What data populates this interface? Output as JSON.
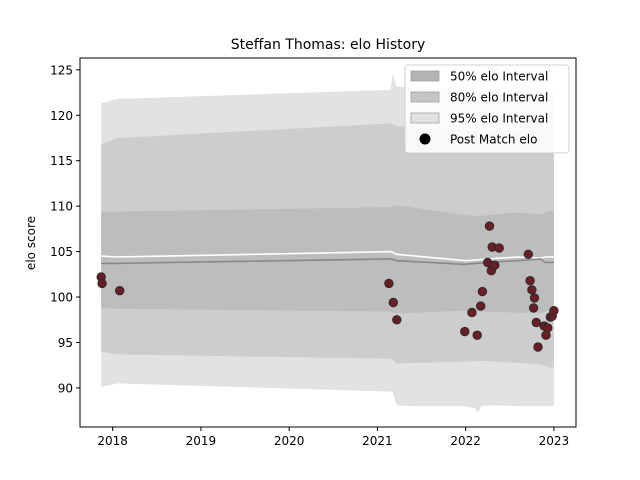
{
  "chart_data": {
    "type": "line",
    "title": "Steffan Thomas: elo History",
    "xlabel": "",
    "ylabel": "elo score",
    "xlim": [
      2017.63,
      2023.25
    ],
    "ylim": [
      85.7,
      126.3
    ],
    "xticks": [
      2018,
      2019,
      2020,
      2021,
      2022,
      2023
    ],
    "yticks": [
      90,
      95,
      100,
      105,
      110,
      115,
      120,
      125
    ],
    "grid": false,
    "legend_position": "top-right",
    "legend": [
      {
        "label": "50% elo Interval",
        "color": "#b3b3b3",
        "kind": "patch"
      },
      {
        "label": "80% elo Interval",
        "color": "#c6c6c6",
        "kind": "patch"
      },
      {
        "label": "95% elo Interval",
        "color": "#e2e2e2",
        "kind": "patch"
      },
      {
        "label": "Post Match elo",
        "color": "#000000",
        "kind": "marker"
      }
    ],
    "colors": {
      "band_95": "#e2e2e2",
      "band_80": "#cdcdcd",
      "band_50": "#bdbdbd",
      "mean_line": "#ffffff",
      "median_line": "#888888",
      "marker_fill": "#6b1f24",
      "marker_edge": "#2a2a2a"
    },
    "band_95": {
      "x": [
        2017.87,
        2018.05,
        2021.15,
        2021.17,
        2021.22,
        2021.4,
        2021.98,
        2022.1,
        2022.14,
        2022.18,
        2022.25,
        2022.6,
        2022.85,
        2022.95,
        2023.0
      ],
      "upper": [
        121.3,
        121.8,
        122.8,
        124.5,
        123.2,
        123.0,
        122.8,
        122.8,
        122.8,
        122.6,
        122.5,
        122.3,
        122.3,
        122.5,
        122.4
      ],
      "lower": [
        90.1,
        90.5,
        89.6,
        89.6,
        88.1,
        88.0,
        88.0,
        87.8,
        87.3,
        88.0,
        88.1,
        88.0,
        88.0,
        88.0,
        88.0
      ]
    },
    "band_80": {
      "x": [
        2017.87,
        2018.05,
        2021.15,
        2021.22,
        2022.0,
        2022.2,
        2022.5,
        2022.85,
        2022.95,
        2023.0
      ],
      "upper": [
        116.8,
        117.5,
        119.1,
        118.8,
        118.3,
        118.2,
        118.3,
        118.4,
        118.6,
        118.5
      ],
      "lower": [
        94.0,
        93.7,
        93.2,
        92.7,
        92.9,
        93.0,
        92.8,
        92.6,
        92.2,
        92.3
      ]
    },
    "band_50": {
      "x": [
        2017.87,
        2018.05,
        2021.15,
        2021.22,
        2021.98,
        2022.15,
        2022.55,
        2022.85,
        2022.95,
        2023.0
      ],
      "upper": [
        109.4,
        109.4,
        109.9,
        110.1,
        109.0,
        108.9,
        109.3,
        109.1,
        109.5,
        109.4
      ],
      "lower": [
        98.8,
        98.7,
        98.4,
        98.2,
        98.5,
        98.4,
        98.3,
        98.2,
        98.6,
        98.5
      ]
    },
    "mean_line": {
      "x": [
        2017.87,
        2018.05,
        2021.15,
        2021.22,
        2022.0,
        2022.4,
        2022.6,
        2022.85,
        2022.9,
        2023.0
      ],
      "y": [
        104.5,
        104.4,
        105.0,
        104.7,
        104.0,
        104.3,
        104.4,
        104.3,
        104.4,
        104.4
      ]
    },
    "median_line": {
      "x": [
        2017.87,
        2018.05,
        2021.15,
        2021.22,
        2021.98,
        2022.4,
        2022.6,
        2022.85,
        2022.9,
        2023.0
      ],
      "y": [
        103.7,
        103.7,
        104.2,
        104.0,
        103.6,
        103.9,
        104.0,
        104.2,
        103.8,
        103.8
      ]
    },
    "post_match_elo": {
      "x": [
        2017.87,
        2017.88,
        2018.08,
        2021.13,
        2021.18,
        2021.22,
        2021.99,
        2022.07,
        2022.13,
        2022.17,
        2022.19,
        2022.25,
        2022.27,
        2022.29,
        2022.3,
        2022.33,
        2022.38,
        2022.71,
        2022.73,
        2022.75,
        2022.77,
        2022.78,
        2022.8,
        2022.82,
        2022.89,
        2022.91,
        2022.93,
        2022.96,
        2022.98,
        2023.0
      ],
      "y": [
        102.2,
        101.5,
        100.7,
        101.5,
        99.4,
        97.5,
        96.2,
        98.3,
        95.8,
        99.0,
        100.6,
        103.8,
        107.8,
        102.9,
        105.5,
        103.5,
        105.4,
        104.7,
        101.8,
        100.8,
        98.8,
        99.9,
        97.2,
        94.5,
        96.8,
        95.8,
        96.6,
        97.8,
        97.9,
        98.5
      ]
    }
  }
}
